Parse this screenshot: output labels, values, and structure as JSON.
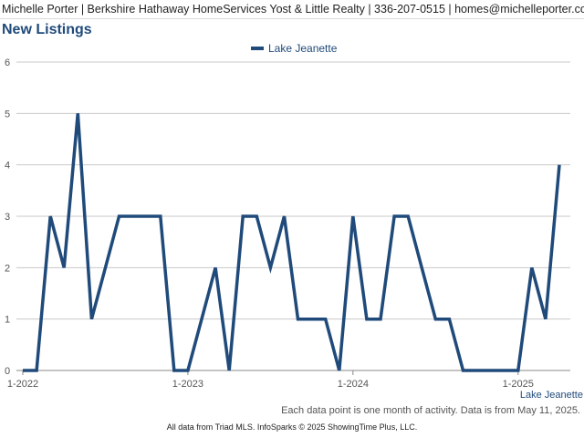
{
  "header": {
    "text": "Michelle Porter | Berkshire Hathaway HomeServices Yost & Little Realty | 336-207-0515 | homes@michelleporter.com"
  },
  "colors": {
    "series": "#1f4a7a",
    "grid": "#c8c8c8",
    "axis": "#888888"
  },
  "chart_data": {
    "type": "line",
    "title": "New Listings",
    "xlabel": "",
    "ylabel": "",
    "ylim": [
      0,
      6
    ],
    "yticks": [
      0,
      1,
      2,
      3,
      4,
      5,
      6
    ],
    "xticks": [
      {
        "label": "1-2022",
        "index": 0
      },
      {
        "label": "1-2023",
        "index": 12
      },
      {
        "label": "1-2024",
        "index": 24
      },
      {
        "label": "1-2025",
        "index": 36
      }
    ],
    "legend_position": "top-center",
    "grid": true,
    "series": [
      {
        "name": "Lake Jeanette",
        "x": [
          "1-2022",
          "2-2022",
          "3-2022",
          "4-2022",
          "5-2022",
          "6-2022",
          "7-2022",
          "8-2022",
          "9-2022",
          "10-2022",
          "11-2022",
          "12-2022",
          "1-2023",
          "2-2023",
          "3-2023",
          "4-2023",
          "5-2023",
          "6-2023",
          "7-2023",
          "8-2023",
          "9-2023",
          "10-2023",
          "11-2023",
          "12-2023",
          "1-2024",
          "2-2024",
          "3-2024",
          "4-2024",
          "5-2024",
          "6-2024",
          "7-2024",
          "8-2024",
          "9-2024",
          "10-2024",
          "11-2024",
          "12-2024",
          "1-2025",
          "2-2025",
          "3-2025",
          "4-2025"
        ],
        "values": [
          0,
          0,
          3,
          2,
          5,
          1,
          2,
          3,
          3,
          3,
          3,
          0,
          0,
          1,
          2,
          0,
          3,
          3,
          2,
          3,
          1,
          1,
          1,
          0,
          3,
          1,
          1,
          3,
          3,
          2,
          1,
          1,
          0,
          0,
          0,
          0,
          0,
          2,
          1,
          4
        ]
      }
    ]
  },
  "footer": {
    "note": "Each data point is one month of activity. Data is from May 11, 2025.",
    "credit": "All data from Triad MLS. InfoSparks © 2025 ShowingTime Plus, LLC."
  }
}
